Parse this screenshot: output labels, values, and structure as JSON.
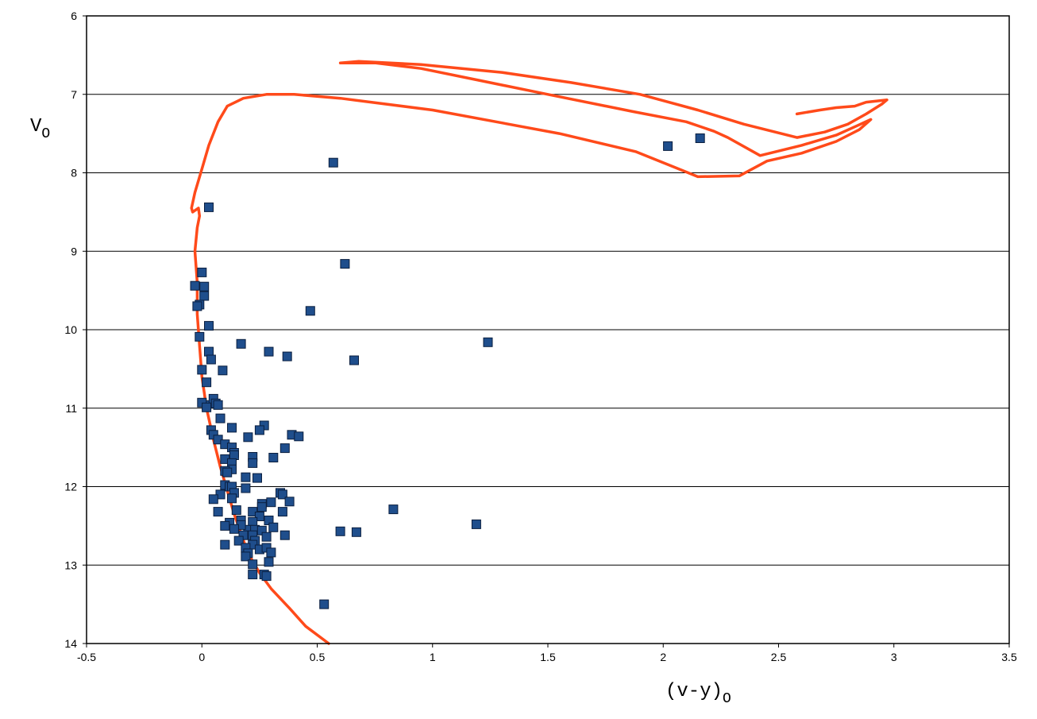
{
  "chart_data": {
    "type": "scatter",
    "xlim": [
      -0.5,
      3.5
    ],
    "ylim": [
      14,
      6
    ],
    "y_inverted": true,
    "grid": "horizontal",
    "x_ticks": [
      -0.5,
      0,
      0.5,
      1,
      1.5,
      2,
      2.5,
      3,
      3.5
    ],
    "x_tick_labels": [
      "-0.5",
      "0",
      "0.5",
      "1",
      "1.5",
      "2",
      "2.5",
      "3",
      "3.5"
    ],
    "y_ticks": [
      6,
      7,
      8,
      9,
      10,
      11,
      12,
      13,
      14
    ],
    "y_tick_labels": [
      "6",
      "7",
      "8",
      "9",
      "10",
      "11",
      "12",
      "13",
      "14"
    ],
    "xlabel": "(v-y)",
    "xlabel_sub": "O",
    "ylabel": "V",
    "ylabel_sub": "O",
    "colors": {
      "points": "#1f4e8c",
      "point_border": "#0b1f3f",
      "curve": "#ff4a1a",
      "grid": "#000000"
    },
    "series": [
      {
        "kind": "points",
        "x": [
          0.57,
          0.03,
          0.62,
          0.0,
          -0.03,
          0.01,
          0.01,
          -0.01,
          -0.02,
          0.47,
          0.03,
          -0.01,
          1.24,
          0.17,
          0.29,
          0.37,
          0.66,
          0.03,
          0.04,
          0.0,
          0.02,
          0.09,
          0.02,
          0.05,
          0.06,
          0.07,
          0.0,
          0.02,
          0.08,
          0.27,
          0.04,
          0.05,
          0.13,
          0.25,
          0.39,
          0.42,
          0.2,
          0.07,
          0.1,
          0.13,
          0.14,
          0.14,
          0.36,
          0.22,
          0.31,
          0.1,
          0.22,
          0.13,
          0.13,
          0.1,
          0.11,
          0.24,
          0.19,
          0.1,
          0.12,
          0.13,
          0.19,
          0.34,
          0.35,
          0.14,
          0.08,
          0.05,
          0.13,
          0.3,
          0.38,
          0.26,
          0.07,
          0.22,
          0.15,
          0.26,
          0.35,
          0.17,
          0.25,
          0.29,
          0.31,
          0.22,
          0.83,
          0.2,
          0.17,
          0.12,
          0.1,
          0.14,
          0.23,
          0.26,
          0.22,
          1.19,
          0.6,
          0.67,
          0.18,
          0.28,
          0.36,
          0.23,
          0.16,
          0.22,
          0.1,
          0.19,
          0.25,
          0.28,
          0.2,
          0.3,
          0.19,
          0.29,
          0.22,
          0.22,
          0.27,
          0.28,
          0.53,
          2.02,
          2.16
        ],
        "y": [
          7.87,
          8.44,
          9.16,
          9.27,
          9.44,
          9.45,
          9.57,
          9.68,
          9.7,
          9.76,
          9.95,
          10.09,
          10.16,
          10.18,
          10.28,
          10.34,
          10.39,
          10.28,
          10.38,
          10.51,
          10.67,
          10.52,
          10.96,
          10.88,
          10.94,
          10.96,
          10.93,
          10.99,
          11.13,
          11.22,
          11.28,
          11.34,
          11.25,
          11.28,
          11.34,
          11.36,
          11.37,
          11.4,
          11.46,
          11.5,
          11.57,
          11.6,
          11.51,
          11.62,
          11.63,
          11.65,
          11.7,
          11.7,
          11.78,
          11.8,
          11.82,
          11.89,
          11.88,
          11.98,
          12.0,
          12.0,
          12.02,
          12.08,
          12.1,
          12.08,
          12.1,
          12.16,
          12.15,
          12.2,
          12.19,
          12.22,
          12.32,
          12.32,
          12.3,
          12.26,
          12.32,
          12.43,
          12.38,
          12.43,
          12.52,
          12.45,
          12.29,
          12.55,
          12.49,
          12.46,
          12.5,
          12.54,
          12.55,
          12.56,
          12.62,
          12.48,
          12.57,
          12.58,
          12.62,
          12.64,
          12.62,
          12.69,
          12.69,
          12.74,
          12.74,
          12.78,
          12.8,
          12.78,
          12.85,
          12.84,
          12.89,
          12.96,
          12.99,
          13.12,
          13.12,
          13.14,
          13.5,
          7.66,
          7.56
        ]
      },
      {
        "kind": "curve",
        "x": [
          0.55,
          0.45,
          0.38,
          0.3,
          0.25,
          0.2,
          0.17,
          0.14,
          0.11,
          0.08,
          0.05,
          0.02,
          0.0,
          -0.01,
          -0.02,
          -0.02,
          -0.03,
          -0.02,
          -0.01,
          -0.015,
          -0.04,
          -0.045,
          -0.03,
          0.0,
          0.03,
          0.07,
          0.11,
          0.18,
          0.28,
          0.4,
          0.6,
          1.0,
          1.55,
          1.88,
          2.05,
          2.15,
          2.33,
          2.45,
          2.6,
          2.75,
          2.85,
          2.9,
          2.84,
          2.75,
          2.6,
          2.42,
          2.28,
          2.22,
          2.1,
          1.87,
          1.5,
          1.2,
          0.95,
          0.75,
          0.6,
          0.68,
          0.95,
          1.3,
          1.6,
          1.9,
          2.15,
          2.35,
          2.58,
          2.7,
          2.8,
          2.88,
          2.95,
          2.97,
          2.88,
          2.83,
          2.75,
          2.68,
          2.58
        ],
        "y": [
          14.0,
          13.78,
          13.55,
          13.3,
          13.1,
          12.85,
          12.6,
          12.35,
          12.05,
          11.75,
          11.4,
          11.0,
          10.6,
          10.2,
          9.8,
          9.4,
          9.0,
          8.7,
          8.55,
          8.45,
          8.5,
          8.45,
          8.25,
          7.95,
          7.65,
          7.35,
          7.15,
          7.05,
          7.0,
          7.0,
          7.05,
          7.2,
          7.5,
          7.73,
          7.93,
          8.05,
          8.04,
          7.85,
          7.75,
          7.6,
          7.45,
          7.32,
          7.4,
          7.52,
          7.65,
          7.78,
          7.55,
          7.47,
          7.35,
          7.22,
          7.0,
          6.82,
          6.67,
          6.6,
          6.6,
          6.58,
          6.62,
          6.72,
          6.85,
          7.0,
          7.2,
          7.38,
          7.55,
          7.48,
          7.38,
          7.25,
          7.12,
          7.07,
          7.1,
          7.15,
          7.17,
          7.2,
          7.25
        ]
      }
    ]
  }
}
